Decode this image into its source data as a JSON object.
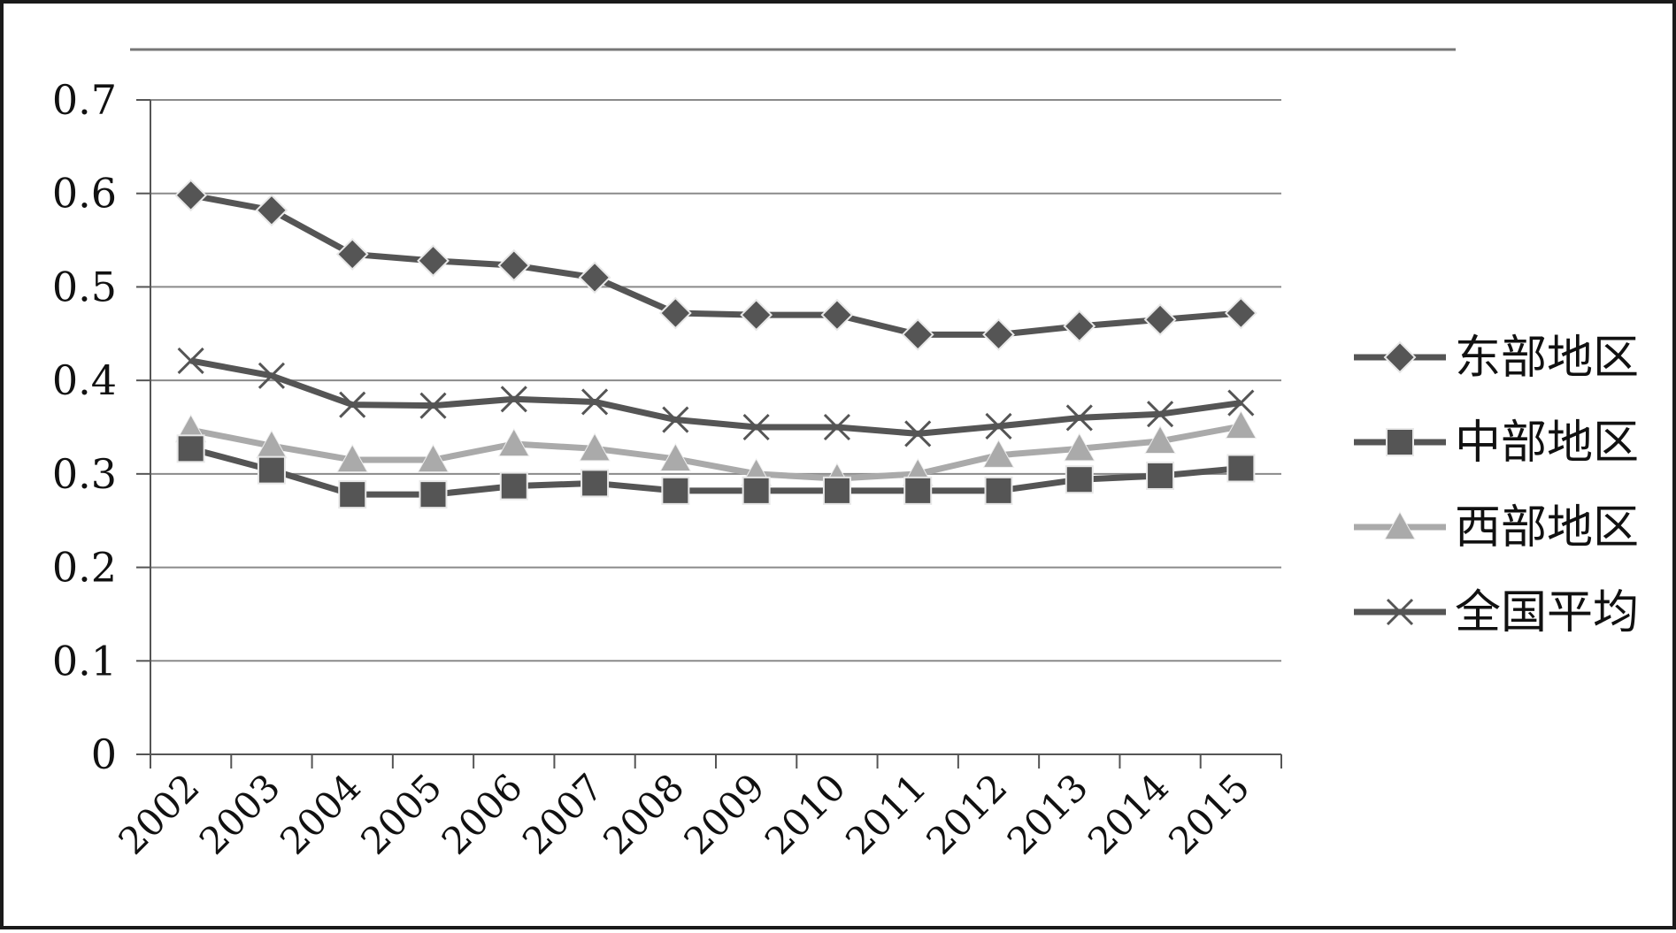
{
  "chart_data": {
    "type": "line",
    "categories": [
      "2002",
      "2003",
      "2004",
      "2005",
      "2006",
      "2007",
      "2008",
      "2009",
      "2010",
      "2011",
      "2012",
      "2013",
      "2014",
      "2015"
    ],
    "ylim": [
      0,
      0.7
    ],
    "yticks": [
      0,
      0.1,
      0.2,
      0.3,
      0.4,
      0.5,
      0.6,
      0.7
    ],
    "ytick_labels": [
      "0",
      "0.1",
      "0.2",
      "0.3",
      "0.4",
      "0.5",
      "0.6",
      "0.7"
    ],
    "grid": true,
    "legend_position": "right",
    "series": [
      {
        "name": "东部地区",
        "marker": "diamond",
        "color": "#555555",
        "values": [
          0.598,
          0.582,
          0.535,
          0.528,
          0.523,
          0.51,
          0.472,
          0.47,
          0.47,
          0.449,
          0.449,
          0.458,
          0.465,
          0.472
        ]
      },
      {
        "name": "中部地区",
        "marker": "square",
        "color": "#555555",
        "values": [
          0.327,
          0.304,
          0.278,
          0.278,
          0.287,
          0.29,
          0.282,
          0.282,
          0.282,
          0.282,
          0.282,
          0.294,
          0.298,
          0.306
        ]
      },
      {
        "name": "西部地区",
        "marker": "triangle",
        "color": "#aaaaaa",
        "values": [
          0.347,
          0.33,
          0.315,
          0.315,
          0.332,
          0.327,
          0.316,
          0.3,
          0.295,
          0.3,
          0.32,
          0.327,
          0.335,
          0.351
        ]
      },
      {
        "name": "全国平均",
        "marker": "cross",
        "color": "#555555",
        "values": [
          0.421,
          0.405,
          0.374,
          0.373,
          0.38,
          0.377,
          0.358,
          0.35,
          0.35,
          0.343,
          0.351,
          0.36,
          0.364,
          0.376
        ]
      }
    ]
  }
}
